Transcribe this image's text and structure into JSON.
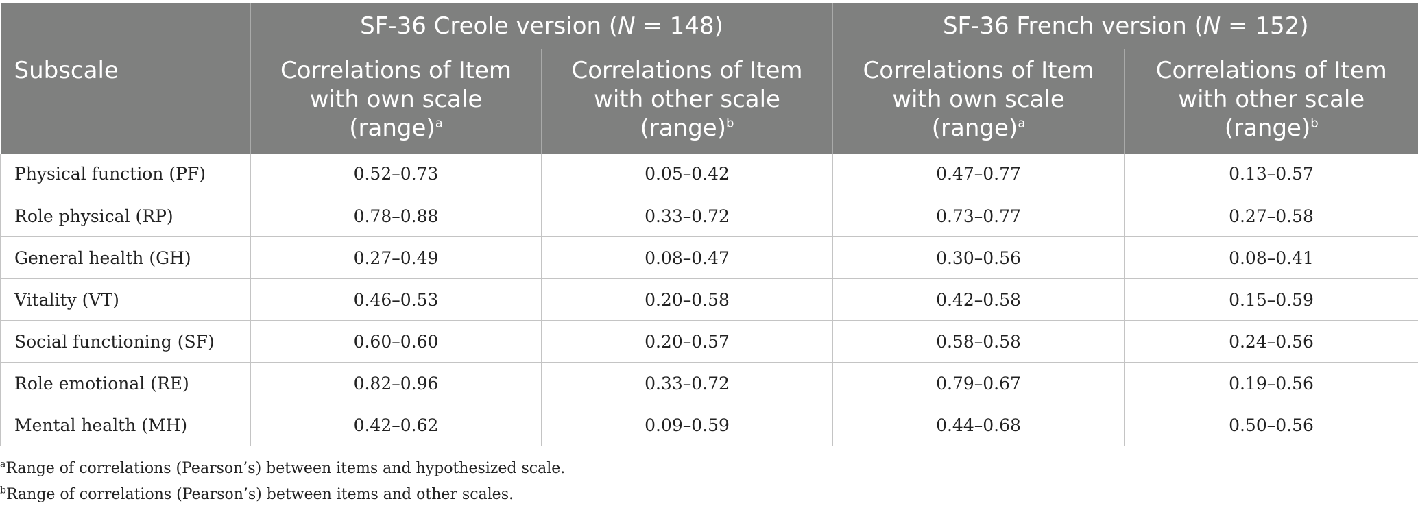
{
  "table": {
    "groups": [
      {
        "pre": "SF-36 Creole version (",
        "n_label": "N",
        "post": " = 148)"
      },
      {
        "pre": "SF-36 French version (",
        "n_label": "N",
        "post": " = 152)"
      }
    ],
    "subscale_header": "Subscale",
    "columns": [
      {
        "line1": "Correlations of Item",
        "line2": "with own scale",
        "line3": "(range)",
        "sup": "a"
      },
      {
        "line1": "Correlations of Item",
        "line2": "with other scale",
        "line3": "(range)",
        "sup": "b"
      },
      {
        "line1": "Correlations of Item",
        "line2": "with own scale",
        "line3": "(range)",
        "sup": "a"
      },
      {
        "line1": "Correlations of Item",
        "line2": "with other scale",
        "line3": "(range)",
        "sup": "b"
      }
    ],
    "rows": [
      {
        "subscale": "Physical function (PF)",
        "values": [
          "0.52–0.73",
          "0.05–0.42",
          "0.47–0.77",
          "0.13–0.57"
        ]
      },
      {
        "subscale": "Role physical (RP)",
        "values": [
          "0.78–0.88",
          "0.33–0.72",
          "0.73–0.77",
          "0.27–0.58"
        ]
      },
      {
        "subscale": "General health (GH)",
        "values": [
          "0.27–0.49",
          "0.08–0.47",
          "0.30–0.56",
          "0.08–0.41"
        ]
      },
      {
        "subscale": "Vitality (VT)",
        "values": [
          "0.46–0.53",
          "0.20–0.58",
          "0.42–0.58",
          "0.15–0.59"
        ]
      },
      {
        "subscale": "Social functioning (SF)",
        "values": [
          "0.60–0.60",
          "0.20–0.57",
          "0.58–0.58",
          "0.24–0.56"
        ]
      },
      {
        "subscale": "Role emotional (RE)",
        "values": [
          "0.82–0.96",
          "0.33–0.72",
          "0.79–0.67",
          "0.19–0.56"
        ]
      },
      {
        "subscale": "Mental health (MH)",
        "values": [
          "0.42–0.62",
          "0.09–0.59",
          "0.44–0.68",
          "0.50–0.56"
        ]
      }
    ]
  },
  "footnotes": [
    {
      "mark": "a",
      "text": "Range of correlations (Pearson’s) between items and hypothesized scale."
    },
    {
      "mark": "b",
      "text": "Range of correlations (Pearson’s) between items and other scales."
    }
  ],
  "colors": {
    "header_bg": "#7f807f",
    "header_text": "#ffffff",
    "grid": "#c4c4c4"
  }
}
